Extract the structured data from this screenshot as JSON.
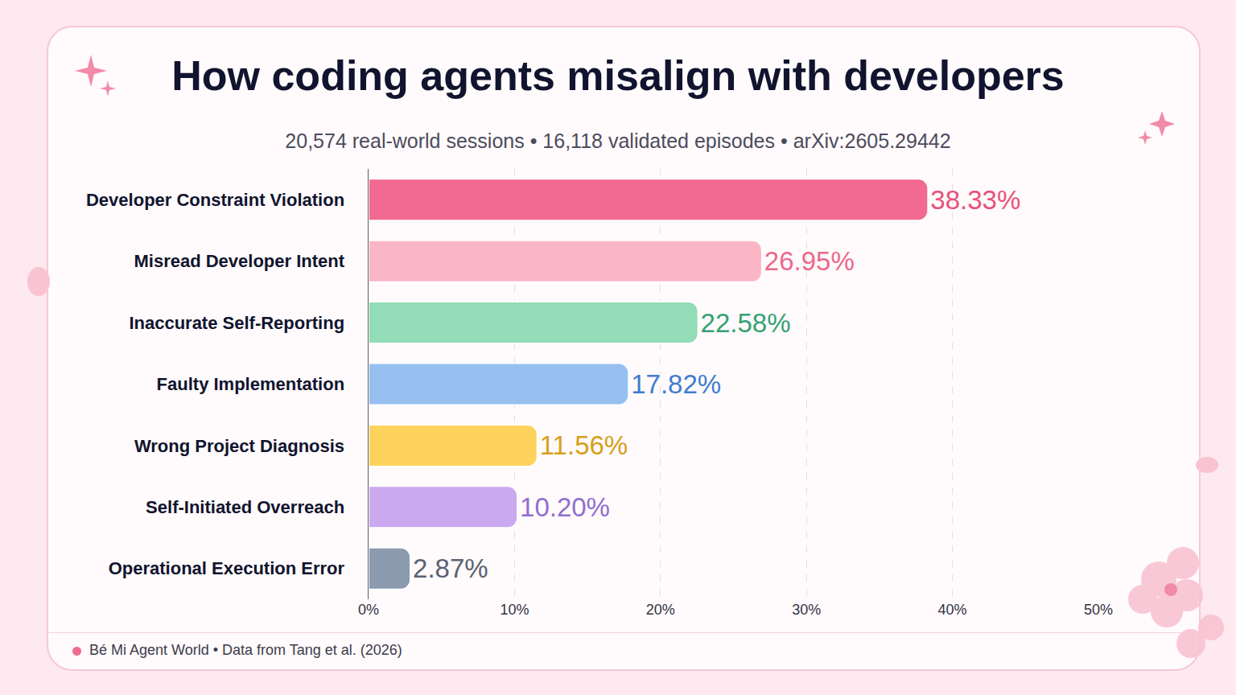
{
  "chart_data": {
    "type": "bar",
    "orientation": "horizontal",
    "title": "How coding agents misalign with developers",
    "subtitle": "20,574 real-world sessions • 16,118 validated episodes • arXiv:2605.29442",
    "source": "Bé Mi Agent World • Data from Tang et al. (2026)",
    "categories": [
      "Developer Constraint Violation",
      "Misread Developer Intent",
      "Inaccurate Self-Reporting",
      "Faulty Implementation",
      "Wrong Project Diagnosis",
      "Self-Initiated Overreach",
      "Operational Execution Error"
    ],
    "values": [
      38.33,
      26.95,
      22.58,
      17.82,
      11.56,
      10.2,
      2.87
    ],
    "value_labels": [
      "38.33%",
      "26.95%",
      "22.58%",
      "17.82%",
      "11.56%",
      "10.20%",
      "2.87%"
    ],
    "colors": [
      "#f26a92",
      "#fbb6c6",
      "#92dcb7",
      "#97bff0",
      "#fdd35c",
      "#caa9ee",
      "#8d9bb0"
    ],
    "data_labels": true,
    "xlim": [
      0,
      50
    ],
    "xticks": [
      {
        "value": 0,
        "label": "0%"
      },
      {
        "value": 10,
        "label": "10%"
      },
      {
        "value": 20,
        "label": "20%"
      },
      {
        "value": 30,
        "label": "30%"
      },
      {
        "value": 40,
        "label": "40%"
      },
      {
        "value": 50,
        "label": "50%"
      }
    ],
    "grid": true
  }
}
